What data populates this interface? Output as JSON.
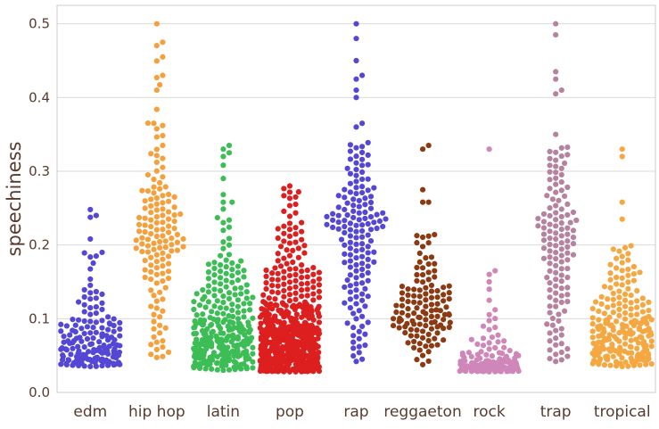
{
  "chart_data": {
    "type": "scatter",
    "subtype": "swarm",
    "ylabel": "speechiness",
    "xlabel": "",
    "ylim": [
      0,
      0.525
    ],
    "yticks": [
      "0.0",
      "0.1",
      "0.2",
      "0.3",
      "0.4",
      "0.5"
    ],
    "grid": "horizontal",
    "categories": [
      "edm",
      "hip hop",
      "latin",
      "pop",
      "rap",
      "reggaeton",
      "rock",
      "trap",
      "tropical"
    ],
    "series": [
      {
        "category": "edm",
        "color": "#5547d6",
        "count": 170,
        "quantiles": [
          [
            0,
            0.035
          ],
          [
            0.1,
            0.04
          ],
          [
            0.3,
            0.048
          ],
          [
            0.5,
            0.06
          ],
          [
            0.7,
            0.08
          ],
          [
            0.85,
            0.1
          ],
          [
            0.95,
            0.14
          ],
          [
            0.985,
            0.19
          ],
          [
            1,
            0.25
          ]
        ],
        "outliers": [
          0.248,
          0.24,
          0.19,
          0.185
        ]
      },
      {
        "category": "hip hop",
        "color": "#f5a03c",
        "count": 135,
        "quantiles": [
          [
            0,
            0.045
          ],
          [
            0.06,
            0.07
          ],
          [
            0.2,
            0.15
          ],
          [
            0.35,
            0.19
          ],
          [
            0.5,
            0.21
          ],
          [
            0.7,
            0.245
          ],
          [
            0.85,
            0.28
          ],
          [
            0.93,
            0.33
          ],
          [
            0.97,
            0.37
          ],
          [
            1,
            0.5
          ]
        ],
        "outliers": [
          0.5,
          0.475,
          0.455,
          0.43,
          0.427,
          0.41,
          0.365,
          0.362
        ]
      },
      {
        "category": "latin",
        "color": "#3dbd55",
        "count": 300,
        "quantiles": [
          [
            0,
            0.03
          ],
          [
            0.1,
            0.04
          ],
          [
            0.3,
            0.055
          ],
          [
            0.5,
            0.075
          ],
          [
            0.7,
            0.1
          ],
          [
            0.85,
            0.14
          ],
          [
            0.95,
            0.18
          ],
          [
            0.985,
            0.24
          ],
          [
            1,
            0.335
          ]
        ],
        "outliers": [
          0.335,
          0.33,
          0.32,
          0.258,
          0.258,
          0.237
        ]
      },
      {
        "category": "pop",
        "color": "#dd1f1f",
        "count": 650,
        "quantiles": [
          [
            0,
            0.028
          ],
          [
            0.12,
            0.035
          ],
          [
            0.3,
            0.05
          ],
          [
            0.5,
            0.07
          ],
          [
            0.7,
            0.09
          ],
          [
            0.85,
            0.12
          ],
          [
            0.94,
            0.17
          ],
          [
            0.985,
            0.23
          ],
          [
            1,
            0.28
          ]
        ],
        "outliers": [
          0.28,
          0.272,
          0.265
        ]
      },
      {
        "category": "rap",
        "color": "#5547d6",
        "count": 150,
        "quantiles": [
          [
            0,
            0.04
          ],
          [
            0.05,
            0.07
          ],
          [
            0.15,
            0.12
          ],
          [
            0.3,
            0.17
          ],
          [
            0.5,
            0.22
          ],
          [
            0.7,
            0.245
          ],
          [
            0.85,
            0.28
          ],
          [
            0.95,
            0.32
          ],
          [
            1,
            0.34
          ]
        ],
        "outliers": [
          0.5,
          0.48,
          0.45,
          0.43,
          0.425,
          0.41,
          0.4,
          0.365,
          0.36
        ]
      },
      {
        "category": "reggaeton",
        "color": "#8b3a12",
        "count": 120,
        "quantiles": [
          [
            0,
            0.035
          ],
          [
            0.05,
            0.06
          ],
          [
            0.2,
            0.085
          ],
          [
            0.5,
            0.11
          ],
          [
            0.8,
            0.145
          ],
          [
            0.92,
            0.18
          ],
          [
            0.97,
            0.21
          ],
          [
            1,
            0.215
          ]
        ],
        "outliers": [
          0.335,
          0.33,
          0.275,
          0.258,
          0.258
        ]
      },
      {
        "category": "rock",
        "color": "#cf86b8",
        "count": 170,
        "quantiles": [
          [
            0,
            0.028
          ],
          [
            0.3,
            0.033
          ],
          [
            0.55,
            0.037
          ],
          [
            0.75,
            0.043
          ],
          [
            0.88,
            0.055
          ],
          [
            0.95,
            0.075
          ],
          [
            0.985,
            0.1
          ],
          [
            1,
            0.115
          ]
        ],
        "outliers": [
          0.33,
          0.165,
          0.16,
          0.15,
          0.14,
          0.125
        ]
      },
      {
        "category": "trap",
        "color": "#b5839f",
        "count": 125,
        "quantiles": [
          [
            0,
            0.04
          ],
          [
            0.06,
            0.06
          ],
          [
            0.2,
            0.12
          ],
          [
            0.4,
            0.18
          ],
          [
            0.55,
            0.21
          ],
          [
            0.75,
            0.245
          ],
          [
            0.9,
            0.3
          ],
          [
            1,
            0.335
          ]
        ],
        "outliers": [
          0.5,
          0.485,
          0.435,
          0.425,
          0.41,
          0.405,
          0.35
        ]
      },
      {
        "category": "tropical",
        "color": "#f5a841",
        "count": 220,
        "quantiles": [
          [
            0,
            0.035
          ],
          [
            0.12,
            0.045
          ],
          [
            0.3,
            0.06
          ],
          [
            0.5,
            0.08
          ],
          [
            0.7,
            0.1
          ],
          [
            0.85,
            0.13
          ],
          [
            0.95,
            0.17
          ],
          [
            1,
            0.2
          ]
        ],
        "outliers": [
          0.33,
          0.32,
          0.258,
          0.235
        ]
      }
    ]
  }
}
